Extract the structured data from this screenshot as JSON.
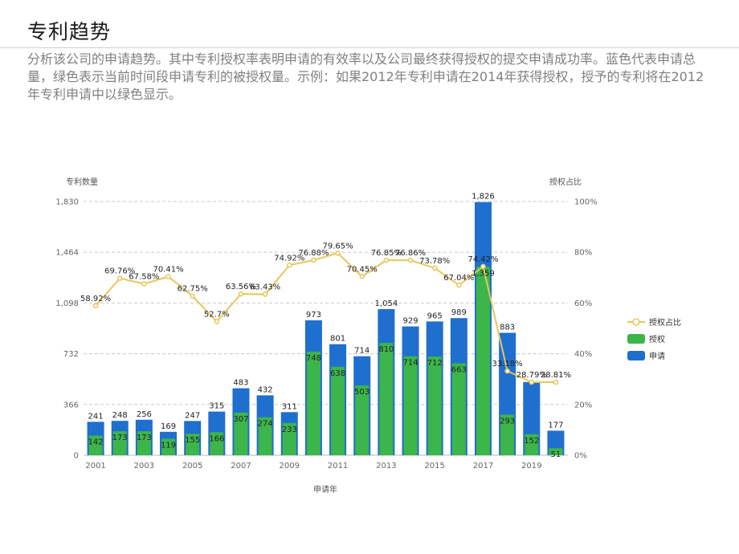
{
  "page": {
    "title": "专利趋势",
    "description": "分析该公司的申请趋势。其中专利授权率表明申请的有效率以及公司最终获得授权的提交申请成功率。蓝色代表申请总量，绿色表示当前时间段申请专利的被授权量。示例：如果2012年专利申请在2014年获得授权，授予的专利将在2012年专利申请中以绿色显示。"
  },
  "chart_data": {
    "type": "bar",
    "title": "",
    "xlabel": "申请年",
    "ylabel": "专利数量",
    "y2label": "授权占比",
    "categories": [
      2001,
      2002,
      2003,
      2004,
      2005,
      2006,
      2007,
      2008,
      2009,
      2010,
      2011,
      2012,
      2013,
      2014,
      2015,
      2016,
      2017,
      2018,
      2019,
      2020
    ],
    "x_tick_labels": [
      "2001",
      "2003",
      "2005",
      "2007",
      "2009",
      "2011",
      "2013",
      "2015",
      "2017",
      "2019"
    ],
    "ylim": [
      0,
      1830
    ],
    "y_ticks": [
      0,
      366,
      732,
      1098,
      1464,
      1830
    ],
    "y_tick_labels": [
      "0",
      "366",
      "732",
      "1,098",
      "1,464",
      "1,830"
    ],
    "y2lim": [
      0,
      100
    ],
    "y2_ticks": [
      0,
      20,
      40,
      60,
      80,
      100
    ],
    "y2_tick_labels": [
      "0%",
      "20%",
      "40%",
      "60%",
      "80%",
      "100%"
    ],
    "series": [
      {
        "name": "申请",
        "kind": "bar",
        "color": "#1f6fce",
        "values": [
          241,
          248,
          256,
          169,
          247,
          315,
          483,
          432,
          311,
          973,
          801,
          714,
          1054,
          929,
          965,
          989,
          1826,
          883,
          528,
          177
        ],
        "labels": [
          "241",
          "248",
          "256",
          "169",
          "247",
          "315",
          "483",
          "432",
          "311",
          "973",
          "801",
          "714",
          "1,054",
          "929",
          "965",
          "989",
          "1,826",
          "883",
          "",
          "177"
        ]
      },
      {
        "name": "授权",
        "kind": "bar",
        "color": "#3cb54a",
        "values": [
          142,
          173,
          173,
          119,
          155,
          166,
          307,
          274,
          233,
          748,
          638,
          503,
          810,
          714,
          712,
          663,
          1359,
          293,
          152,
          51
        ],
        "labels": [
          "142",
          "173",
          "173",
          "119",
          "155",
          "166",
          "307",
          "274",
          "233",
          "748",
          "638",
          "503",
          "810",
          "714",
          "712",
          "663",
          "1,359",
          "293",
          "152",
          "51"
        ]
      },
      {
        "name": "授权占比",
        "kind": "line",
        "color": "#e8c65a",
        "values": [
          58.92,
          69.76,
          67.58,
          70.41,
          62.75,
          52.7,
          63.56,
          63.43,
          74.92,
          76.88,
          79.65,
          70.45,
          76.85,
          76.86,
          73.78,
          67.04,
          74.42,
          33.18,
          28.79,
          28.81
        ],
        "labels": [
          "58.92%",
          "69.76%",
          "67.58%",
          "70.41%",
          "62.75%",
          "52.7%",
          "63.56%",
          "63.43%",
          "74.92%",
          "76.88%",
          "79.65%",
          "70.45%",
          "76.85%",
          "76.86%",
          "73.78%",
          "67.04%",
          "74.42%",
          "33.18%",
          "28.79%",
          "28.81%"
        ]
      }
    ],
    "grid": true,
    "legend_position": "right"
  }
}
